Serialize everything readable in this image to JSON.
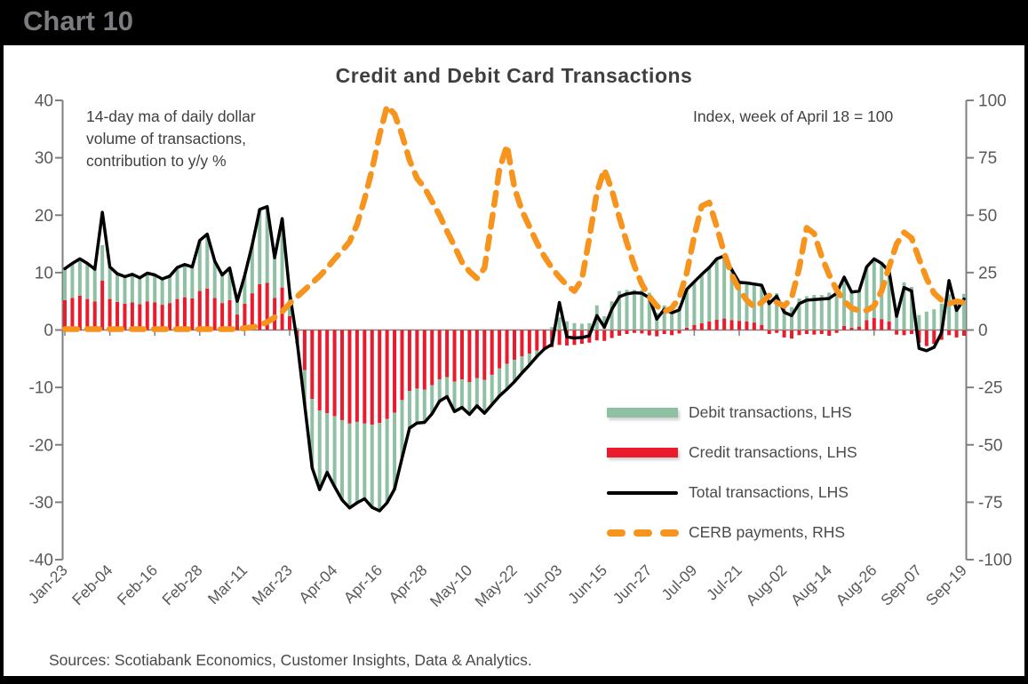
{
  "banner": {
    "title": "Chart 10"
  },
  "chart": {
    "title": "Credit and Debit Card Transactions",
    "annotation_left": "14-day ma of daily dollar\nvolume of transactions,\ncontribution to y/y %",
    "annotation_right": "Index, week of April 18 = 100",
    "source": "Sources: Scotiabank Economics, Customer Insights, Data & Analytics."
  },
  "legend": [
    {
      "label": "Debit transactions, LHS",
      "series": "debit",
      "swatch": "bar"
    },
    {
      "label": "Credit transactions, LHS",
      "series": "credit",
      "swatch": "bar"
    },
    {
      "label": "Total transactions, LHS",
      "series": "total",
      "swatch": "line"
    },
    {
      "label": "CERB payments, RHS",
      "series": "cerb",
      "swatch": "dashed-line"
    }
  ],
  "colors": {
    "debit": "#8FC0A4",
    "credit": "#EA1B2D",
    "total": "#000000",
    "cerb": "#F7941D",
    "axis": "#7F7F7F",
    "zero_line": "#808080",
    "tick_text": "#595959",
    "title_text": "#3F3F41",
    "banner_text": "#7B7C7F"
  },
  "chart_data": {
    "type": "combo",
    "description": "Daily card transaction contributions (bars stacked: credit base + debit) with total line on left axis and CERB payments index on right axis; sampled every 2 days from Jan-23 to Sep-19",
    "x_step_days": 2,
    "x_tick_spacing_days": 12,
    "x_tick_labels": [
      "Jan-23",
      "Feb-04",
      "Feb-16",
      "Feb-28",
      "Mar-11",
      "Mar-23",
      "Apr-04",
      "Apr-16",
      "Apr-28",
      "May-10",
      "May-22",
      "Jun-03",
      "Jun-15",
      "Jun-27",
      "Jul-09",
      "Jul-21",
      "Aug-02",
      "Aug-14",
      "Aug-26",
      "Sep-07",
      "Sep-19"
    ],
    "left_axis": {
      "ticks": [
        40,
        30,
        20,
        10,
        0,
        -10,
        -20,
        -30,
        -40
      ],
      "range": [
        -40,
        40
      ]
    },
    "right_axis": {
      "ticks": [
        100,
        75,
        50,
        25,
        0,
        -25,
        -50,
        -75,
        -100
      ],
      "range": [
        -100,
        100
      ]
    },
    "legend_position": "inside-right-middle",
    "grid": false,
    "series": [
      {
        "name": "Debit transactions, LHS",
        "type": "bar",
        "axis": "left",
        "color_key": "debit",
        "values": [
          5.5,
          6.0,
          6.4,
          6.2,
          5.6,
          6.2,
          5.6,
          4.9,
          4.7,
          4.9,
          4.6,
          4.9,
          4.8,
          4.5,
          4.7,
          5.5,
          5.7,
          5.5,
          8.8,
          9.5,
          6.4,
          4.9,
          5.6,
          2.3,
          4.9,
          8.4,
          13.0,
          13.3,
          7.0,
          12.0,
          4.1,
          0.4,
          -6.0,
          -12.0,
          -13.8,
          -10.3,
          -12.3,
          -13.9,
          -14.7,
          -14.1,
          -13.1,
          -14.4,
          -15.3,
          -14.6,
          -13.3,
          -10.1,
          -6.5,
          -6.0,
          -5.7,
          -5.0,
          -3.8,
          -3.4,
          -5.2,
          -4.9,
          -5.6,
          -4.8,
          -5.8,
          -5.2,
          -4.8,
          -4.4,
          -3.8,
          -2.9,
          -2.0,
          -1.0,
          -0.1,
          0.5,
          2.2,
          1.5,
          1.2,
          1.1,
          1.2,
          4.3,
          2.4,
          5.0,
          6.8,
          7.0,
          7.0,
          7.0,
          6.5,
          3.0,
          4.3,
          3.9,
          4.1,
          6.7,
          7.5,
          8.5,
          9.4,
          10.6,
          10.9,
          8.8,
          6.7,
          6.7,
          6.7,
          6.9,
          5.3,
          6.4,
          4.4,
          4.0,
          5.5,
          5.9,
          6.1,
          6.1,
          6.5,
          6.9,
          8.5,
          6.2,
          6.2,
          9.3,
          10.3,
          9.7,
          8.7,
          3.2,
          8.3,
          7.5,
          2.6,
          3.2,
          3.6,
          4.6,
          6.2,
          5.4,
          6.3
        ]
      },
      {
        "name": "Credit transactions, LHS",
        "type": "bar",
        "axis": "left",
        "color_key": "credit",
        "values": [
          5.2,
          5.6,
          6.0,
          5.4,
          5.0,
          8.6,
          5.4,
          4.9,
          4.6,
          4.8,
          4.5,
          5.0,
          4.8,
          4.4,
          4.7,
          5.4,
          5.7,
          5.5,
          6.8,
          7.2,
          5.6,
          4.7,
          5.2,
          2.7,
          4.6,
          6.4,
          8.0,
          8.2,
          5.6,
          7.4,
          2.4,
          -2.4,
          -7.0,
          -12.0,
          -14.0,
          -14.5,
          -15.0,
          -15.7,
          -16.3,
          -16.0,
          -16.3,
          -16.5,
          -16.2,
          -15.5,
          -14.4,
          -12.2,
          -10.6,
          -10.2,
          -10.4,
          -9.6,
          -8.6,
          -8.2,
          -9.0,
          -8.6,
          -9.1,
          -8.4,
          -8.7,
          -7.8,
          -6.7,
          -5.9,
          -5.2,
          -4.6,
          -4.1,
          -3.6,
          -3.2,
          -3.0,
          -2.6,
          -2.7,
          -2.6,
          -2.4,
          -2.2,
          -1.8,
          -1.9,
          -1.4,
          -1.0,
          -0.7,
          -0.5,
          -0.6,
          -0.9,
          -1.1,
          -0.7,
          -0.9,
          -0.6,
          0.4,
          0.9,
          1.2,
          1.5,
          1.8,
          2.0,
          1.7,
          1.6,
          1.5,
          1.3,
          0.9,
          -0.7,
          -0.5,
          -1.3,
          -1.5,
          -0.9,
          -0.7,
          -0.8,
          -0.7,
          -1.0,
          -0.5,
          0.7,
          0.4,
          0.6,
          1.7,
          2.1,
          1.9,
          1.5,
          -0.8,
          -0.9,
          -0.7,
          -2.2,
          -2.8,
          -2.4,
          -1.7,
          -0.9,
          -1.3,
          -1.0
        ]
      },
      {
        "name": "Total transactions, LHS",
        "type": "line",
        "axis": "left",
        "color_key": "total",
        "values": [
          10.7,
          11.6,
          12.4,
          11.6,
          10.6,
          20.5,
          11.0,
          9.8,
          9.3,
          9.7,
          9.1,
          9.9,
          9.6,
          8.9,
          9.4,
          10.9,
          11.4,
          11.0,
          15.6,
          16.7,
          12.0,
          9.6,
          10.8,
          5.0,
          9.5,
          14.8,
          21.0,
          21.5,
          12.6,
          19.4,
          6.5,
          -2.0,
          -13.0,
          -24.0,
          -27.8,
          -24.8,
          -27.3,
          -29.6,
          -31.0,
          -30.1,
          -29.4,
          -30.9,
          -31.5,
          -30.1,
          -27.7,
          -22.3,
          -17.1,
          -16.2,
          -16.1,
          -14.6,
          -12.4,
          -11.6,
          -14.2,
          -13.5,
          -14.7,
          -13.2,
          -14.5,
          -13.0,
          -11.5,
          -10.3,
          -9.0,
          -7.5,
          -6.1,
          -4.6,
          -3.3,
          -2.5,
          4.8,
          -1.2,
          -1.4,
          -1.3,
          -1.0,
          2.5,
          0.5,
          3.6,
          5.8,
          6.3,
          6.5,
          6.4,
          5.6,
          1.9,
          3.6,
          3.0,
          3.5,
          7.1,
          8.4,
          9.7,
          10.9,
          12.4,
          12.9,
          10.5,
          8.3,
          8.2,
          8.0,
          7.8,
          4.6,
          5.9,
          3.1,
          2.5,
          4.6,
          5.2,
          5.3,
          5.4,
          5.5,
          6.4,
          9.2,
          6.6,
          6.8,
          11.0,
          12.4,
          11.6,
          10.2,
          2.4,
          7.4,
          6.8,
          -3.2,
          -3.6,
          -3.0,
          -0.5,
          8.6,
          3.4,
          5.4
        ]
      },
      {
        "name": "CERB payments, RHS",
        "type": "dashed_line",
        "axis": "right",
        "color_key": "cerb",
        "values": [
          0.4,
          0.4,
          0.4,
          0.4,
          0.4,
          0.4,
          0.4,
          0.4,
          0.4,
          0.4,
          0.4,
          0.4,
          0.4,
          0.4,
          0.4,
          0.4,
          0.4,
          0.4,
          0.4,
          0.4,
          0.4,
          0.4,
          0.4,
          0.4,
          0.8,
          1.2,
          2.0,
          3.5,
          5.5,
          8.0,
          11.5,
          14.5,
          17.5,
          20.5,
          23.5,
          27.0,
          31.0,
          34.5,
          38.5,
          46.0,
          57.0,
          70.0,
          85.0,
          97.5,
          94.0,
          85.0,
          74.0,
          66.0,
          62.0,
          56.0,
          50.0,
          43.0,
          36.5,
          29.5,
          25.5,
          22.5,
          27.0,
          48.0,
          70.0,
          80.5,
          62.0,
          52.0,
          45.0,
          38.0,
          32.0,
          27.0,
          23.0,
          19.5,
          17.0,
          22.0,
          40.0,
          60.0,
          70.0,
          61.0,
          49.0,
          38.0,
          28.0,
          20.0,
          14.5,
          10.5,
          8.0,
          9.5,
          14.0,
          25.0,
          41.0,
          54.0,
          55.5,
          45.0,
          33.5,
          24.0,
          17.5,
          13.0,
          10.0,
          12.0,
          15.0,
          12.0,
          10.5,
          14.0,
          27.0,
          44.5,
          42.0,
          32.0,
          24.0,
          17.5,
          12.5,
          9.5,
          8.5,
          8.5,
          10.5,
          17.0,
          27.5,
          37.5,
          42.5,
          40.0,
          31.0,
          22.5,
          16.0,
          13.0,
          11.5,
          12.5,
          12.0
        ]
      }
    ]
  }
}
